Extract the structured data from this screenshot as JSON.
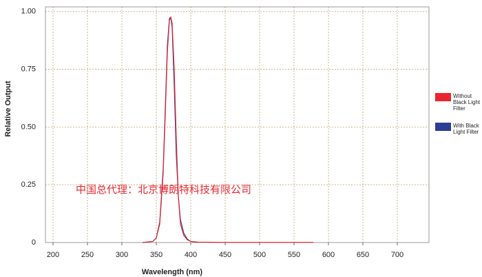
{
  "chart_data": {
    "type": "line",
    "x_label": "Wavelength (nm)",
    "y_label": "Relative Output",
    "annotation": "中国总代理：北京博朗特科技有限公司",
    "x": [
      330,
      345,
      350,
      355,
      360,
      363,
      366,
      369,
      371,
      373,
      376,
      379,
      382,
      385,
      390,
      395,
      400,
      410,
      450,
      500,
      578
    ],
    "series": [
      {
        "name": "Without Black Light Filter",
        "color": "#e8262e",
        "values": [
          0,
          0.005,
          0.02,
          0.08,
          0.3,
          0.55,
          0.82,
          0.96,
          0.975,
          0.95,
          0.75,
          0.45,
          0.2,
          0.08,
          0.03,
          0.012,
          0.005,
          0.002,
          0.001,
          0.001,
          0.001
        ]
      },
      {
        "name": "With Black Light Filter",
        "color": "#2b3f94",
        "values": [
          0,
          0.005,
          0.02,
          0.09,
          0.32,
          0.58,
          0.85,
          0.97,
          0.975,
          0.93,
          0.68,
          0.38,
          0.2,
          0.1,
          0.04,
          0.015,
          0.005,
          0.001,
          null,
          null,
          null
        ]
      }
    ],
    "xlim": [
      189,
      746
    ],
    "ylim": [
      0,
      1.02
    ],
    "xticks": [
      200,
      250,
      300,
      350,
      400,
      450,
      500,
      550,
      600,
      650,
      700
    ],
    "yticks": [
      0,
      0.25,
      {
        "value": 0.5,
        "label": "0.50"
      },
      0.75,
      {
        "value": 1,
        "label": "1.00"
      }
    ],
    "grid": true,
    "legend": "right"
  }
}
